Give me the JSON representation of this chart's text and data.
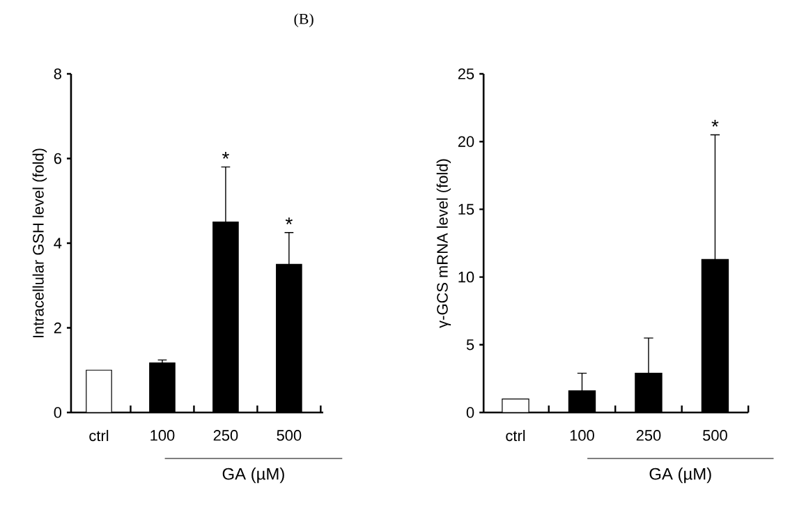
{
  "chart_data": [
    {
      "type": "bar",
      "title": "(B)",
      "ylabel": "Intracellular GSH level (fold)",
      "categories": [
        "ctrl",
        "100",
        "250",
        "500"
      ],
      "values": [
        1.0,
        1.17,
        4.5,
        3.5
      ],
      "colors": [
        "#ffffff",
        "#000000",
        "#000000",
        "#000000"
      ],
      "errors": [
        null,
        [
          1.17,
          1.24
        ],
        [
          4.5,
          5.8
        ],
        [
          3.5,
          4.25
        ]
      ],
      "ylim": [
        0,
        8
      ],
      "yticks": [
        0,
        2,
        4,
        6,
        8
      ],
      "annotations": [
        "GA (µM)",
        {
          "text": "*",
          "x": "250",
          "y": 5.8
        },
        {
          "text": "*",
          "x": "500",
          "y": 4.25
        }
      ]
    },
    {
      "type": "bar",
      "ylabel": "γ-GCS mRNA level (fold)",
      "categories": [
        "ctrl",
        "100",
        "250",
        "500"
      ],
      "values": [
        1.0,
        1.6,
        2.9,
        11.3
      ],
      "colors": [
        "#ffffff",
        "#000000",
        "#000000",
        "#000000"
      ],
      "errors": [
        null,
        [
          1.6,
          2.9
        ],
        [
          2.9,
          5.5
        ],
        [
          11.3,
          20.5
        ]
      ],
      "ylim": [
        0,
        25
      ],
      "yticks": [
        0,
        5,
        10,
        15,
        20,
        25
      ],
      "annotations": [
        "GA (µM)",
        {
          "text": "*",
          "x": "500",
          "y": 20.5
        }
      ]
    }
  ]
}
